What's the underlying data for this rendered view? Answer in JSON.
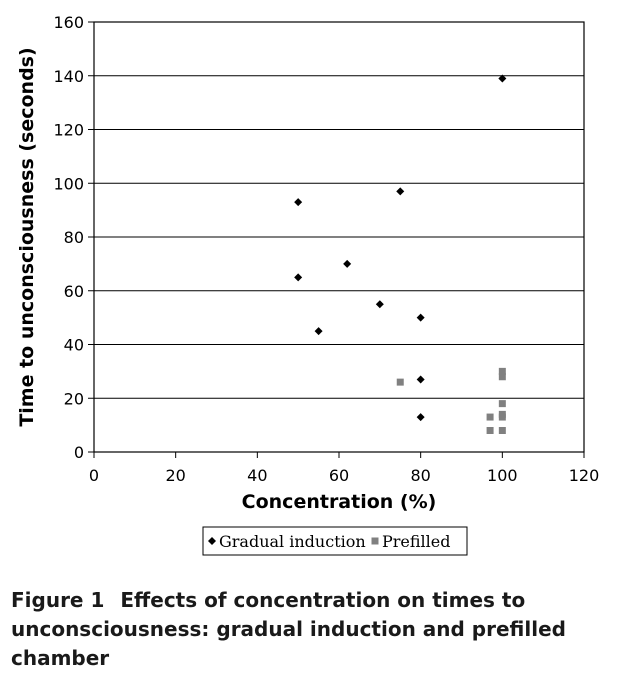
{
  "chart_data": {
    "type": "scatter",
    "xlabel": "Concentration (%)",
    "ylabel": "Time to unconsciousness (seconds)",
    "xlim": [
      0,
      120
    ],
    "ylim": [
      0,
      160
    ],
    "xticks": [
      0,
      20,
      40,
      60,
      80,
      100,
      120
    ],
    "yticks": [
      0,
      20,
      40,
      60,
      80,
      100,
      120,
      140,
      160
    ],
    "grid": "horizontal",
    "legend_position": "bottom",
    "series": [
      {
        "name": "Gradual induction",
        "marker": "diamond",
        "color": "#000000",
        "points": [
          {
            "x": 50,
            "y": 93
          },
          {
            "x": 50,
            "y": 65
          },
          {
            "x": 55,
            "y": 45
          },
          {
            "x": 62,
            "y": 70
          },
          {
            "x": 70,
            "y": 55
          },
          {
            "x": 75,
            "y": 97
          },
          {
            "x": 80,
            "y": 50
          },
          {
            "x": 80,
            "y": 27
          },
          {
            "x": 80,
            "y": 13
          },
          {
            "x": 100,
            "y": 139
          }
        ]
      },
      {
        "name": "Prefilled",
        "marker": "square",
        "color": "#808080",
        "points": [
          {
            "x": 75,
            "y": 26
          },
          {
            "x": 97,
            "y": 13
          },
          {
            "x": 97,
            "y": 8
          },
          {
            "x": 100,
            "y": 30
          },
          {
            "x": 100,
            "y": 28
          },
          {
            "x": 100,
            "y": 18
          },
          {
            "x": 100,
            "y": 14
          },
          {
            "x": 100,
            "y": 13
          },
          {
            "x": 100,
            "y": 8
          }
        ]
      }
    ]
  },
  "caption": {
    "label": "Figure 1",
    "text": "Effects of concentration on times to unconsciousness: gradual induction and prefilled chamber"
  }
}
